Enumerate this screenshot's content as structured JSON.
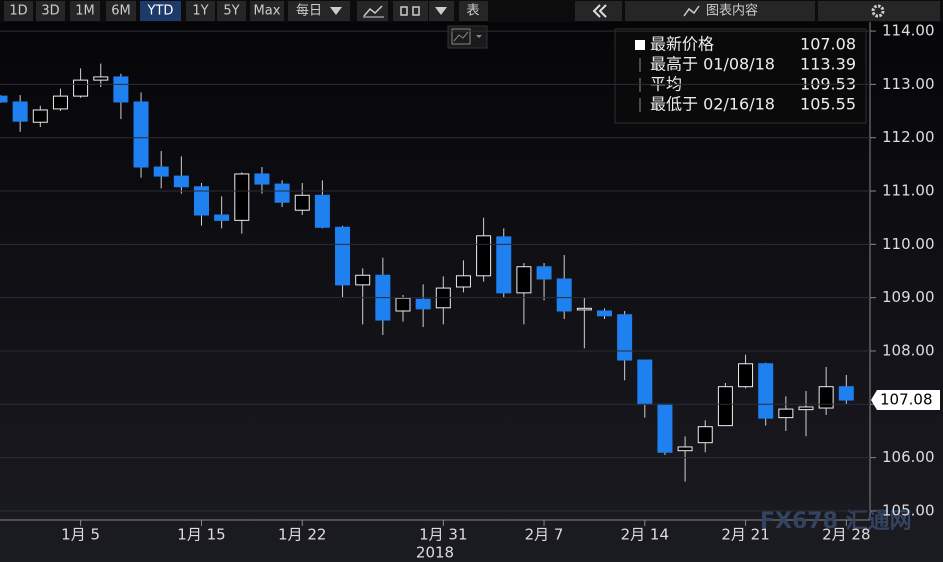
{
  "toolbar": {
    "ranges": [
      "1D",
      "3D",
      "1M",
      "6M",
      "YTD",
      "1Y",
      "5Y",
      "Max"
    ],
    "active_range": 4,
    "frequency": "每日",
    "table": "表",
    "chart_content": "图表内容"
  },
  "chart_data": {
    "type": "candlestick",
    "categories": [
      null,
      null,
      null,
      null,
      "1月 5",
      null,
      null,
      null,
      null,
      null,
      "1月 15",
      null,
      null,
      null,
      null,
      "1月 22",
      null,
      null,
      null,
      null,
      null,
      null,
      "1月 31",
      null,
      null,
      null,
      null,
      "2月 7",
      null,
      null,
      null,
      null,
      "2月 14",
      null,
      null,
      null,
      null,
      "2月 21",
      null,
      null,
      null,
      null,
      "2月 28"
    ],
    "xlabel": "2018",
    "open": [
      112.78,
      112.67,
      112.29,
      112.54,
      112.78,
      113.08,
      113.14,
      112.67,
      111.45,
      111.28,
      111.08,
      110.55,
      110.45,
      111.32,
      111.13,
      110.64,
      110.92,
      110.32,
      109.24,
      109.42,
      108.75,
      108.97,
      108.81,
      109.2,
      109.41,
      110.14,
      109.09,
      109.58,
      109.35,
      108.77,
      108.75,
      108.68,
      107.83,
      107.0,
      106.13,
      106.28,
      106.6,
      107.33,
      107.76,
      106.75,
      106.9,
      106.93,
      107.33
    ],
    "high": [
      112.8,
      112.8,
      112.6,
      112.92,
      113.3,
      113.39,
      113.2,
      112.85,
      111.75,
      111.65,
      111.15,
      110.9,
      111.35,
      111.45,
      111.2,
      111.15,
      111.2,
      110.35,
      109.55,
      109.75,
      109.05,
      109.25,
      109.4,
      109.7,
      110.5,
      110.3,
      109.65,
      109.65,
      109.8,
      109.0,
      108.8,
      108.75,
      107.83,
      107.0,
      106.4,
      106.7,
      107.4,
      107.93,
      107.78,
      107.15,
      107.25,
      107.7,
      107.55
    ],
    "low": [
      112.65,
      112.11,
      112.2,
      112.5,
      112.75,
      112.95,
      112.35,
      111.25,
      111.05,
      110.95,
      110.35,
      110.3,
      110.2,
      110.95,
      110.7,
      110.55,
      110.3,
      109.0,
      108.5,
      108.3,
      108.55,
      108.45,
      108.5,
      109.1,
      109.3,
      109.0,
      108.5,
      108.95,
      108.6,
      108.05,
      108.6,
      107.45,
      106.75,
      106.05,
      105.55,
      106.1,
      106.6,
      107.3,
      106.6,
      106.5,
      106.4,
      106.8,
      107.0
    ],
    "close": [
      112.67,
      112.31,
      112.52,
      112.78,
      113.08,
      113.14,
      112.67,
      111.45,
      111.28,
      111.08,
      110.55,
      110.45,
      111.32,
      111.13,
      110.79,
      110.92,
      110.32,
      109.24,
      109.42,
      108.58,
      108.99,
      108.79,
      109.18,
      109.41,
      110.16,
      109.09,
      109.58,
      109.35,
      108.75,
      108.8,
      108.66,
      107.83,
      107.0,
      106.1,
      106.2,
      106.58,
      107.33,
      107.76,
      106.74,
      106.91,
      106.95,
      107.33,
      107.08
    ],
    "colors": {
      "up": "#000000",
      "down": "#1f80f0"
    },
    "ylim": [
      104.83,
      114.17
    ],
    "yticks": [
      {
        "value": 105,
        "label": "105.00"
      },
      {
        "value": 106,
        "label": "106.00"
      },
      {
        "value": 107,
        "label": "107.00"
      },
      {
        "value": 108,
        "label": "108.00"
      },
      {
        "value": 109,
        "label": "109.00"
      },
      {
        "value": 110,
        "label": "110.00"
      },
      {
        "value": 111,
        "label": "111.00"
      },
      {
        "value": 112,
        "label": "112.00"
      },
      {
        "value": 113,
        "label": "113.00"
      },
      {
        "value": 114,
        "label": "114.00"
      }
    ],
    "grid": true,
    "stats": [
      {
        "label": "最新价格",
        "value": 107.08
      },
      {
        "label": "最高于 01/08/18",
        "value": 113.39
      },
      {
        "label": "平均",
        "value": 109.53
      },
      {
        "label": "最低于 02/16/18",
        "value": 105.55
      }
    ],
    "watermark": "FX678 汇通网"
  }
}
